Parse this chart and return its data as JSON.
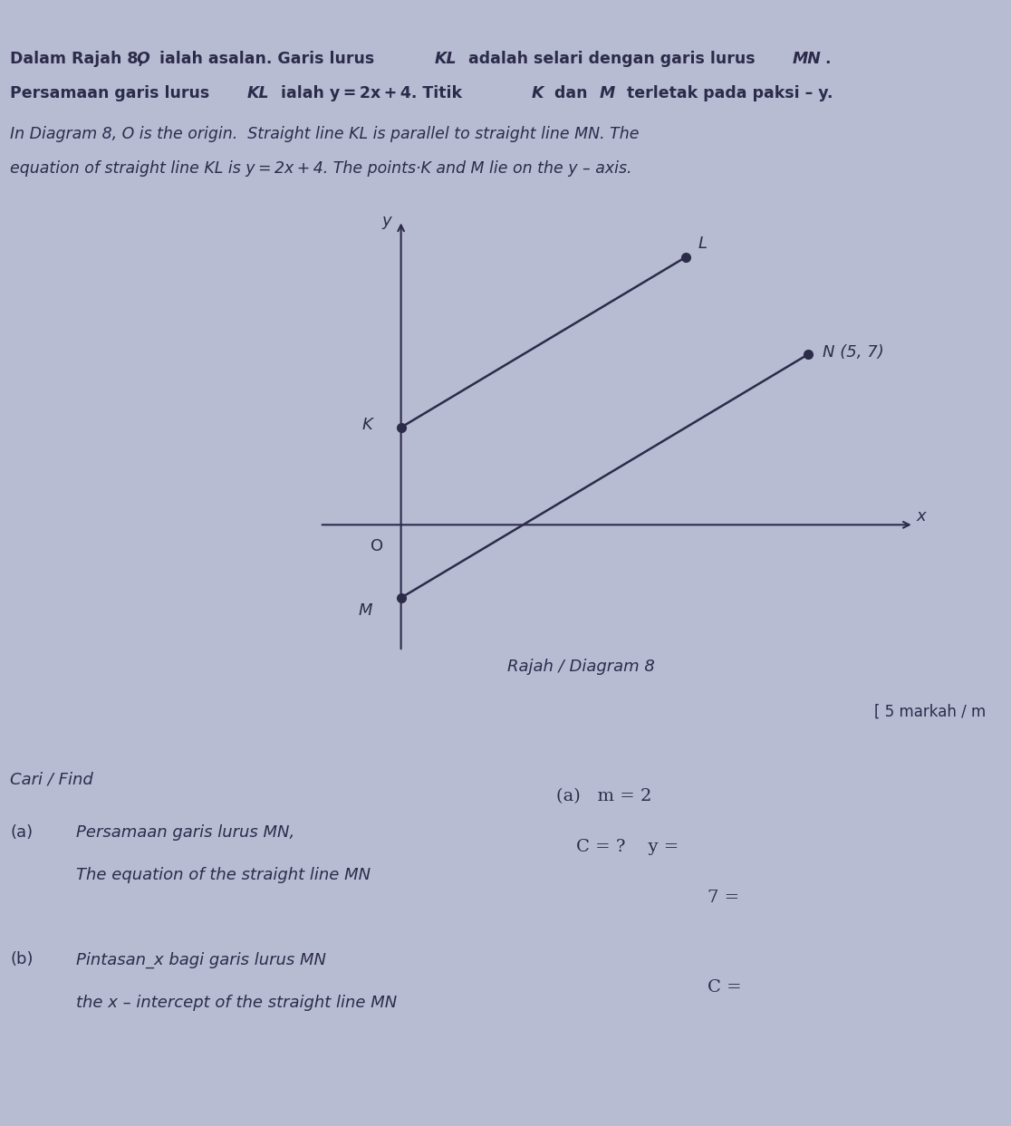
{
  "background_color": "#b8bcd3",
  "text_color": "#2c2c4a",
  "title_line1_bold": "Dalam Rajah 8, ",
  "title_line1_italic": "O",
  "title_line1_rest": " ialah asalan. Garis lurus ",
  "title_line1_kl": "KL",
  "title_line1_mid": " adalah selari dengan garis lurus ",
  "title_line1_mn": "MN.",
  "title_line2_pre": "Persamaan garis lurus ",
  "title_line2_kl": "KL",
  "title_line2_rest": " ialah y = 2x + 4. Titik ",
  "title_line2_k": "K",
  "title_line2_mid": " dan ",
  "title_line2_m": "M",
  "title_line2_end": " terletak pada paksi – y.",
  "title_line3": "In Diagram 8, O is the origin.  Straight line KL is parallel to straight line MN. The",
  "title_line4": "equation of straight line KL is y = 2x + 4. The points·K and M lie on the y – axis.",
  "diagram_label": "Rajah / Diagram 8",
  "marks_label": "[ 5 markah / m",
  "K": [
    0,
    4
  ],
  "L": [
    3.5,
    11
  ],
  "M": [
    0,
    -3
  ],
  "N": [
    5,
    7
  ],
  "N_label": "N (5, 7)",
  "origin_label": "O",
  "K_label": "K",
  "L_label": "L",
  "M_label": "M",
  "y_axis_label": "y",
  "x_axis_label": "x",
  "cari_find": "Cari / Find",
  "part_a_label": "(a)",
  "part_a_ms": "Persamaan garis lurus MN,",
  "part_a_en": "The equation of the straight line MN",
  "part_b_label": "(b)",
  "part_b_ms": "Pintasan_x bagi garis lurus MN",
  "part_b_en": "the x – intercept of the straight line MN",
  "hw_a": "(a)   m = 2",
  "hw_a2": "C = ?    y =",
  "hw_b": "7 =",
  "hw_b2": "C =",
  "line_color": "#2c2c4a",
  "dot_color": "#2c2c4a",
  "dot_size": 7,
  "axis_lw": 1.5,
  "line_lw": 1.8
}
